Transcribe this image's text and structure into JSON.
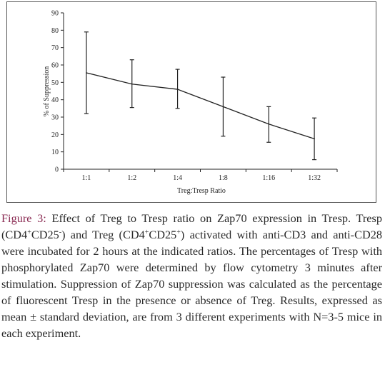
{
  "chart_data": {
    "type": "line",
    "title": "",
    "xlabel": "Treg:Tresp Ratio",
    "ylabel": "% of Suppression",
    "categories": [
      "1:1",
      "1:2",
      "1:4",
      "1:8",
      "1:16",
      "1:32"
    ],
    "values": [
      55.5,
      49,
      46,
      36,
      26,
      17.5
    ],
    "error_low": [
      32,
      35.5,
      35,
      19,
      15.5,
      5.5
    ],
    "error_high": [
      79,
      63,
      57.5,
      53,
      36,
      29.5
    ],
    "ylim": [
      0,
      90
    ],
    "yticks": [
      0,
      10,
      20,
      30,
      40,
      50,
      60,
      70,
      80,
      90
    ],
    "grid": false,
    "legend": "none"
  },
  "caption": {
    "label": "Figure 3:",
    "s1": " Effect of Treg to Tresp ratio on Zap70 expression in Tresp. Tresp (CD4",
    "sup1": "+",
    "s2": "CD25",
    "sup2": "-",
    "s3": ") and Treg (CD4",
    "sup3": "+",
    "s4": "CD25",
    "sup4": "+",
    "s5": ") activated with anti-CD3 and anti-CD28 were incubated for 2 hours at the indicated ratios. The percentages of Tresp with phosphorylated Zap70 were determined by flow cytometry 3 minutes after stimulation. Suppression of Zap70 suppression was calculated as the percentage of fluorescent Tresp in the presence or absence of Treg. Results, expressed as mean ± standard deviation, are from 3 different experiments with N=3-5 mice in each experiment."
  }
}
